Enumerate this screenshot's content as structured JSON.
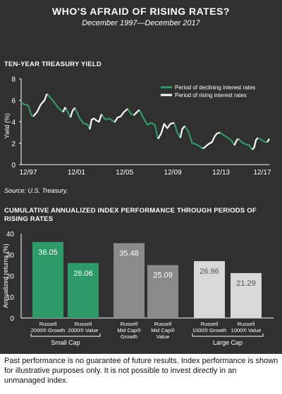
{
  "title": "WHO'S AFRAID OF RISING RATES?",
  "subtitle": "December 1997—December 2017",
  "source": "Source: U.S. Treasury.",
  "footnote": "Past performance is no guarantee of future results. Index performance is shown for illustrative purposes only. It is not possible to invest directly in an unmanaged index.",
  "colors": {
    "background": "#303030",
    "declining": "#2e9a68",
    "rising": "#ffffff",
    "small_cap": "#2e9a68",
    "mid_cap": "#8a8a8a",
    "large_cap": "#d8d8d8"
  },
  "chart_data": [
    {
      "type": "line",
      "title": "TEN-YEAR TREASURY YIELD",
      "ylabel": "Yield (%)",
      "xlabel": "",
      "ylim": [
        0,
        8
      ],
      "yticks": [
        0,
        2,
        4,
        6,
        8
      ],
      "xticks": [
        "12/97",
        "12/01",
        "12/05",
        "12/09",
        "12/13",
        "12/17"
      ],
      "xlim": [
        1997.92,
        2017.92
      ],
      "grid": false,
      "legend_position": "top-right",
      "legend": [
        {
          "label": "Period of declining interest rates",
          "color": "#2e9a68"
        },
        {
          "label": "Period of rising interest rates",
          "color": "#ffffff"
        }
      ],
      "series": [
        {
          "name": "Period of declining interest rates",
          "color": "#2e9a68",
          "segments": [
            [
              [
                1997.92,
                5.8
              ],
              [
                1998.2,
                5.6
              ],
              [
                1998.5,
                5.5
              ],
              [
                1998.75,
                4.6
              ],
              [
                1998.9,
                4.5
              ]
            ],
            [
              [
                2000.0,
                6.6
              ],
              [
                2000.3,
                6.2
              ],
              [
                2000.6,
                5.8
              ],
              [
                2000.9,
                5.3
              ],
              [
                2001.3,
                4.9
              ]
            ],
            [
              [
                2001.55,
                5.2
              ],
              [
                2001.8,
                4.6
              ],
              [
                2001.9,
                4.4
              ]
            ],
            [
              [
                2002.25,
                5.3
              ],
              [
                2002.6,
                4.4
              ],
              [
                2002.9,
                3.9
              ],
              [
                2003.3,
                3.7
              ],
              [
                2003.45,
                3.3
              ]
            ],
            [
              [
                2004.4,
                4.7
              ],
              [
                2004.7,
                4.2
              ],
              [
                2005.0,
                4.3
              ],
              [
                2005.3,
                4.1
              ],
              [
                2005.45,
                3.95
              ]
            ],
            [
              [
                2006.5,
                5.2
              ],
              [
                2006.8,
                4.7
              ],
              [
                2007.0,
                4.6
              ]
            ],
            [
              [
                2007.45,
                5.1
              ],
              [
                2007.8,
                4.3
              ],
              [
                2008.1,
                3.7
              ],
              [
                2008.4,
                3.9
              ],
              [
                2008.7,
                3.7
              ],
              [
                2008.95,
                2.4
              ]
            ],
            [
              [
                2010.25,
                3.9
              ],
              [
                2010.5,
                3.0
              ],
              [
                2010.75,
                2.5
              ]
            ],
            [
              [
                2011.1,
                3.6
              ],
              [
                2011.4,
                3.1
              ],
              [
                2011.7,
                2.0
              ],
              [
                2012.0,
                1.9
              ],
              [
                2012.3,
                1.7
              ],
              [
                2012.55,
                1.5
              ]
            ],
            [
              [
                2013.95,
                3.0
              ],
              [
                2014.3,
                2.7
              ],
              [
                2014.6,
                2.5
              ],
              [
                2014.9,
                2.2
              ],
              [
                2015.1,
                1.8
              ]
            ],
            [
              [
                2015.45,
                2.4
              ],
              [
                2015.7,
                2.1
              ],
              [
                2016.0,
                1.9
              ],
              [
                2016.3,
                1.8
              ],
              [
                2016.55,
                1.4
              ]
            ],
            [
              [
                2017.0,
                2.5
              ],
              [
                2017.3,
                2.3
              ],
              [
                2017.6,
                2.1
              ],
              [
                2017.75,
                2.1
              ]
            ]
          ]
        },
        {
          "name": "Period of rising interest rates",
          "color": "#ffffff",
          "segments": [
            [
              [
                1998.9,
                4.5
              ],
              [
                1999.2,
                4.9
              ],
              [
                1999.5,
                5.6
              ],
              [
                1999.8,
                6.0
              ],
              [
                2000.0,
                6.6
              ]
            ],
            [
              [
                2001.3,
                4.9
              ],
              [
                2001.45,
                5.3
              ],
              [
                2001.55,
                5.2
              ]
            ],
            [
              [
                2001.9,
                4.4
              ],
              [
                2002.05,
                5.0
              ],
              [
                2002.25,
                5.3
              ]
            ],
            [
              [
                2003.45,
                3.3
              ],
              [
                2003.6,
                4.2
              ],
              [
                2003.8,
                4.3
              ],
              [
                2004.0,
                4.1
              ],
              [
                2004.2,
                4.0
              ],
              [
                2004.4,
                4.7
              ]
            ],
            [
              [
                2005.45,
                3.95
              ],
              [
                2005.7,
                4.4
              ],
              [
                2005.95,
                4.5
              ],
              [
                2006.2,
                4.9
              ],
              [
                2006.5,
                5.2
              ]
            ],
            [
              [
                2007.0,
                4.6
              ],
              [
                2007.25,
                4.9
              ],
              [
                2007.45,
                5.1
              ]
            ],
            [
              [
                2008.95,
                2.4
              ],
              [
                2009.2,
                2.9
              ],
              [
                2009.45,
                3.8
              ],
              [
                2009.7,
                3.4
              ],
              [
                2009.95,
                3.8
              ],
              [
                2010.25,
                3.9
              ]
            ],
            [
              [
                2010.75,
                2.5
              ],
              [
                2010.9,
                3.3
              ],
              [
                2011.1,
                3.6
              ]
            ],
            [
              [
                2012.55,
                1.5
              ],
              [
                2012.8,
                1.7
              ],
              [
                2013.0,
                1.9
              ],
              [
                2013.3,
                2.1
              ],
              [
                2013.5,
                2.6
              ],
              [
                2013.7,
                2.9
              ],
              [
                2013.95,
                3.0
              ]
            ],
            [
              [
                2015.1,
                1.8
              ],
              [
                2015.3,
                2.3
              ],
              [
                2015.45,
                2.4
              ]
            ],
            [
              [
                2016.55,
                1.4
              ],
              [
                2016.7,
                1.6
              ],
              [
                2016.85,
                2.3
              ],
              [
                2017.0,
                2.5
              ]
            ],
            [
              [
                2017.75,
                2.1
              ],
              [
                2017.92,
                2.4
              ]
            ]
          ]
        }
      ]
    },
    {
      "type": "bar",
      "title": "CUMULATIVE ANNUALIZED INDEX PERFORMANCE THROUGH PERIODS OF RISING RATES",
      "ylabel": "Annualized returns (%)",
      "xlabel": "",
      "ylim": [
        0,
        40
      ],
      "yticks": [
        0,
        10,
        20,
        30,
        40
      ],
      "grid": false,
      "bars": [
        {
          "label": "Russell 2000® Growth",
          "group": "Small Cap",
          "value": 36.05,
          "color": "#2e9a68"
        },
        {
          "label": "Russell 2000® Value",
          "group": "Small Cap",
          "value": 26.06,
          "color": "#2e9a68"
        },
        {
          "label": "Russell Mid Cap® Growth",
          "group": "",
          "value": 35.48,
          "color": "#8a8a8a"
        },
        {
          "label": "Russell Mid Cap® Value",
          "group": "",
          "value": 25.09,
          "color": "#8a8a8a"
        },
        {
          "label": "Russell 1000® Growth",
          "group": "Large Cap",
          "value": 26.96,
          "color": "#d8d8d8"
        },
        {
          "label": "Russell 1000® Value",
          "group": "Large Cap",
          "value": 21.29,
          "color": "#d8d8d8"
        }
      ],
      "groups": [
        "Small Cap",
        "Large Cap"
      ]
    }
  ]
}
